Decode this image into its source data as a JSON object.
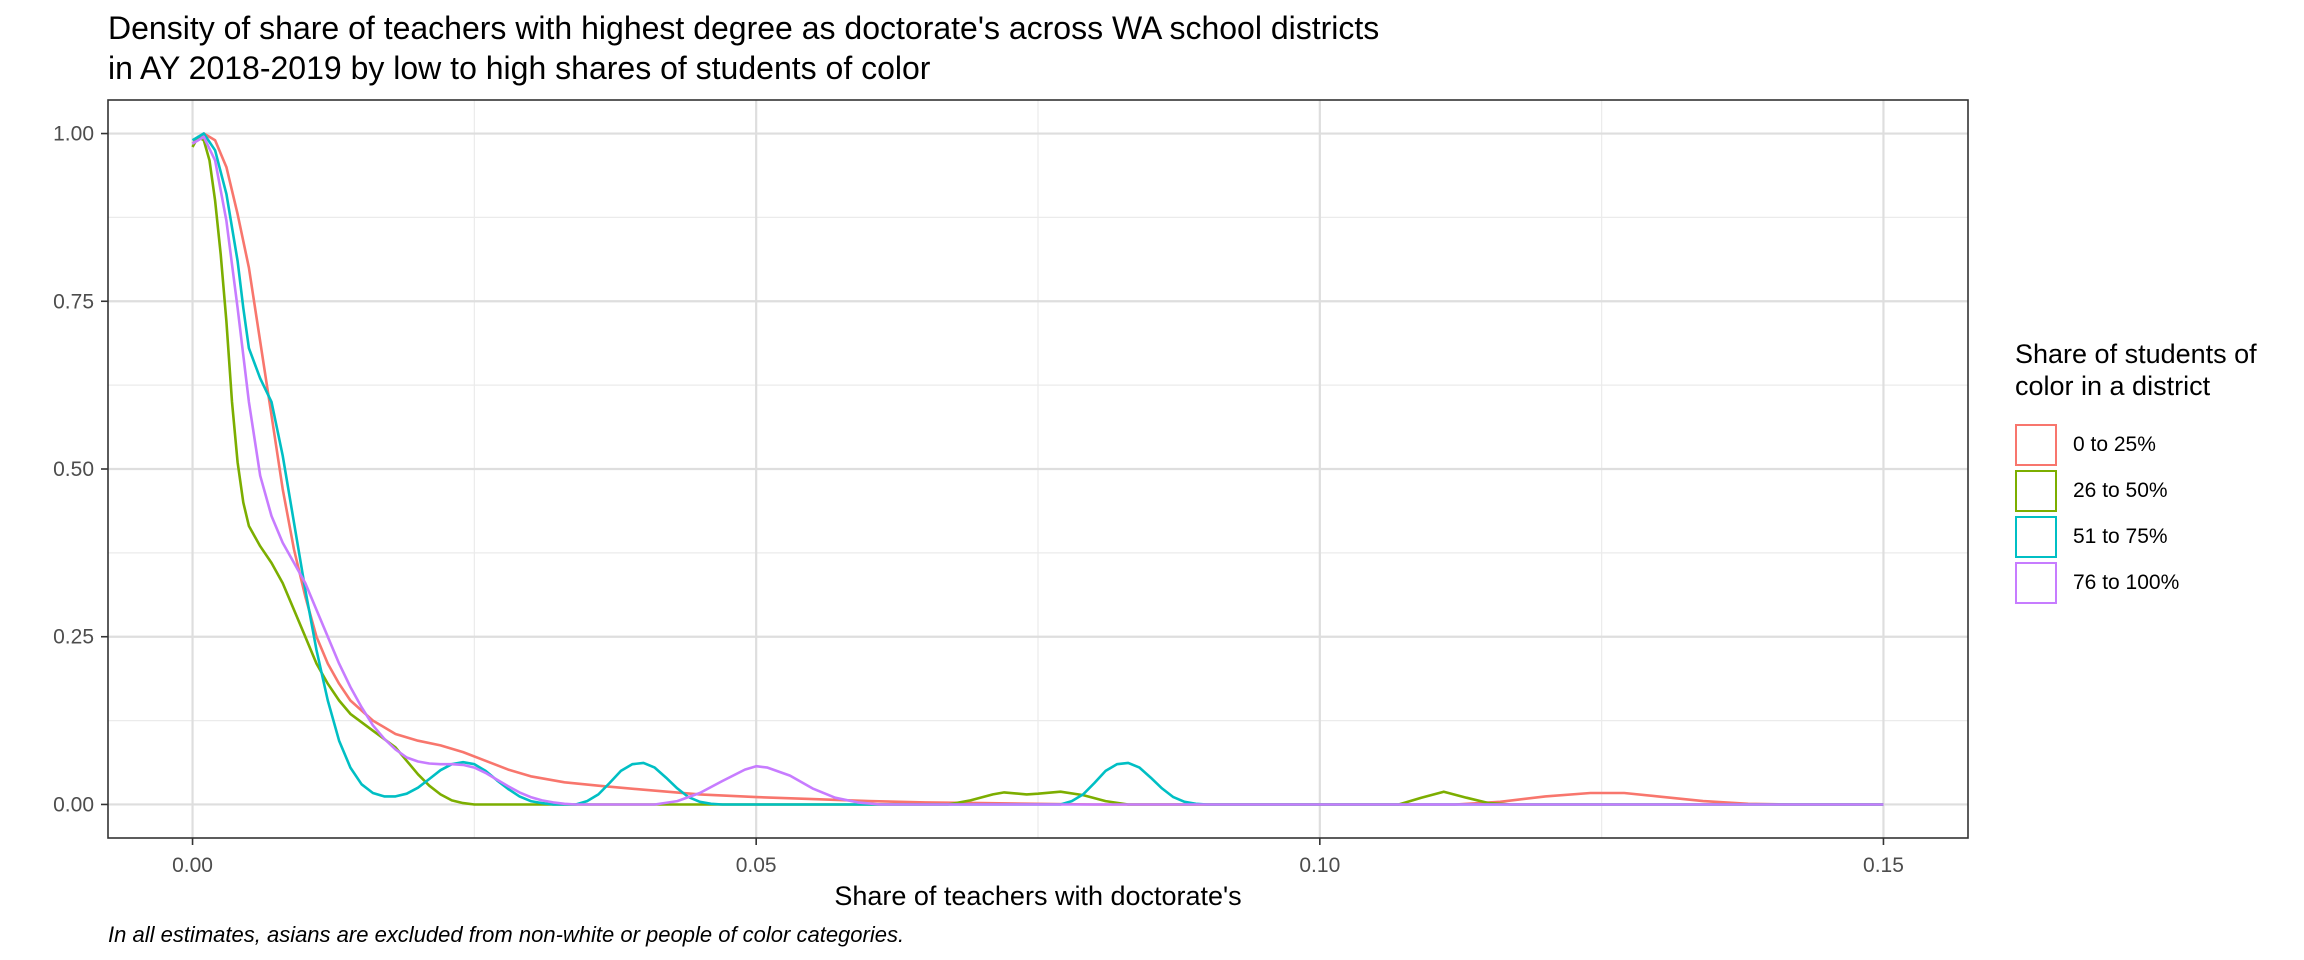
{
  "title_lines": [
    "Density of share of teachers with highest degree as doctorate's across WA school districts",
    "in AY 2018-2019 by low to high shares of students of color"
  ],
  "caption": "In all estimates, asians are excluded from non-white or people of color categories.",
  "legend": {
    "title": "Share of students of color in a district",
    "items": [
      {
        "label": "0 to 25%",
        "color": "#F8766D"
      },
      {
        "label": "26 to 50%",
        "color": "#7CAE00"
      },
      {
        "label": "51 to 75%",
        "color": "#00BFC4"
      },
      {
        "label": "76 to 100%",
        "color": "#C77CFF"
      }
    ]
  },
  "chart_data": {
    "type": "line",
    "title": "Density of share of teachers with highest degree as doctorate's across WA school districts in AY 2018-2019 by low to high shares of students of color",
    "xlabel": "Share of teachers with doctorate's",
    "ylabel": "",
    "xlim": [
      -0.0075,
      0.1575
    ],
    "ylim": [
      -0.05,
      1.05
    ],
    "x_ticks": [
      0.0,
      0.05,
      0.1,
      0.15
    ],
    "x_tick_labels": [
      "0.00",
      "0.05",
      "0.10",
      "0.15"
    ],
    "y_ticks": [
      0.0,
      0.25,
      0.5,
      0.75,
      1.0
    ],
    "y_tick_labels": [
      "0.00",
      "0.25",
      "0.50",
      "0.75",
      "1.00"
    ],
    "grid": true,
    "legend_position": "right",
    "series": [
      {
        "name": "0 to 25%",
        "color": "#F8766D",
        "points": [
          [
            0.0,
            0.985
          ],
          [
            0.001,
            1.0
          ],
          [
            0.002,
            0.99
          ],
          [
            0.003,
            0.95
          ],
          [
            0.004,
            0.88
          ],
          [
            0.005,
            0.8
          ],
          [
            0.006,
            0.69
          ],
          [
            0.007,
            0.58
          ],
          [
            0.008,
            0.47
          ],
          [
            0.009,
            0.38
          ],
          [
            0.01,
            0.31
          ],
          [
            0.011,
            0.25
          ],
          [
            0.012,
            0.21
          ],
          [
            0.013,
            0.18
          ],
          [
            0.014,
            0.155
          ],
          [
            0.016,
            0.125
          ],
          [
            0.018,
            0.105
          ],
          [
            0.02,
            0.095
          ],
          [
            0.022,
            0.088
          ],
          [
            0.024,
            0.078
          ],
          [
            0.026,
            0.065
          ],
          [
            0.028,
            0.052
          ],
          [
            0.03,
            0.042
          ],
          [
            0.033,
            0.033
          ],
          [
            0.036,
            0.028
          ],
          [
            0.04,
            0.022
          ],
          [
            0.045,
            0.015
          ],
          [
            0.05,
            0.011
          ],
          [
            0.055,
            0.008
          ],
          [
            0.06,
            0.005
          ],
          [
            0.065,
            0.003
          ],
          [
            0.07,
            0.002
          ],
          [
            0.08,
            0.0
          ],
          [
            0.1,
            0.0
          ],
          [
            0.112,
            0.0
          ],
          [
            0.116,
            0.004
          ],
          [
            0.12,
            0.012
          ],
          [
            0.124,
            0.017
          ],
          [
            0.127,
            0.017
          ],
          [
            0.13,
            0.012
          ],
          [
            0.134,
            0.005
          ],
          [
            0.138,
            0.001
          ],
          [
            0.142,
            0.0
          ],
          [
            0.15,
            0.0
          ]
        ]
      },
      {
        "name": "26 to 50%",
        "color": "#7CAE00",
        "points": [
          [
            0.0,
            0.98
          ],
          [
            0.0005,
            0.995
          ],
          [
            0.001,
            0.99
          ],
          [
            0.0015,
            0.96
          ],
          [
            0.002,
            0.9
          ],
          [
            0.0025,
            0.82
          ],
          [
            0.003,
            0.72
          ],
          [
            0.0035,
            0.6
          ],
          [
            0.004,
            0.51
          ],
          [
            0.0045,
            0.45
          ],
          [
            0.005,
            0.415
          ],
          [
            0.006,
            0.385
          ],
          [
            0.007,
            0.36
          ],
          [
            0.008,
            0.33
          ],
          [
            0.009,
            0.29
          ],
          [
            0.01,
            0.25
          ],
          [
            0.011,
            0.21
          ],
          [
            0.012,
            0.18
          ],
          [
            0.013,
            0.155
          ],
          [
            0.014,
            0.135
          ],
          [
            0.016,
            0.11
          ],
          [
            0.018,
            0.085
          ],
          [
            0.019,
            0.065
          ],
          [
            0.02,
            0.045
          ],
          [
            0.021,
            0.028
          ],
          [
            0.022,
            0.015
          ],
          [
            0.023,
            0.006
          ],
          [
            0.024,
            0.002
          ],
          [
            0.025,
            0.0
          ],
          [
            0.067,
            0.0
          ],
          [
            0.069,
            0.006
          ],
          [
            0.071,
            0.015
          ],
          [
            0.072,
            0.018
          ],
          [
            0.074,
            0.015
          ],
          [
            0.075,
            0.016
          ],
          [
            0.077,
            0.019
          ],
          [
            0.079,
            0.014
          ],
          [
            0.081,
            0.005
          ],
          [
            0.083,
            0.0
          ],
          [
            0.107,
            0.0
          ],
          [
            0.109,
            0.01
          ],
          [
            0.111,
            0.019
          ],
          [
            0.113,
            0.01
          ],
          [
            0.115,
            0.002
          ],
          [
            0.117,
            0.0
          ],
          [
            0.15,
            0.0
          ]
        ]
      },
      {
        "name": "51 to 75%",
        "color": "#00BFC4",
        "points": [
          [
            0.0,
            0.99
          ],
          [
            0.001,
            1.0
          ],
          [
            0.002,
            0.975
          ],
          [
            0.003,
            0.91
          ],
          [
            0.004,
            0.81
          ],
          [
            0.0045,
            0.74
          ],
          [
            0.005,
            0.68
          ],
          [
            0.006,
            0.635
          ],
          [
            0.007,
            0.6
          ],
          [
            0.008,
            0.52
          ],
          [
            0.009,
            0.42
          ],
          [
            0.01,
            0.32
          ],
          [
            0.011,
            0.23
          ],
          [
            0.012,
            0.155
          ],
          [
            0.013,
            0.095
          ],
          [
            0.014,
            0.055
          ],
          [
            0.015,
            0.03
          ],
          [
            0.016,
            0.017
          ],
          [
            0.017,
            0.012
          ],
          [
            0.018,
            0.012
          ],
          [
            0.019,
            0.016
          ],
          [
            0.02,
            0.025
          ],
          [
            0.021,
            0.038
          ],
          [
            0.022,
            0.051
          ],
          [
            0.023,
            0.06
          ],
          [
            0.024,
            0.063
          ],
          [
            0.025,
            0.06
          ],
          [
            0.026,
            0.05
          ],
          [
            0.027,
            0.036
          ],
          [
            0.028,
            0.023
          ],
          [
            0.029,
            0.012
          ],
          [
            0.03,
            0.005
          ],
          [
            0.031,
            0.002
          ],
          [
            0.032,
            0.0
          ],
          [
            0.034,
            0.0
          ],
          [
            0.035,
            0.005
          ],
          [
            0.036,
            0.015
          ],
          [
            0.037,
            0.032
          ],
          [
            0.038,
            0.05
          ],
          [
            0.039,
            0.06
          ],
          [
            0.04,
            0.062
          ],
          [
            0.041,
            0.055
          ],
          [
            0.042,
            0.04
          ],
          [
            0.043,
            0.024
          ],
          [
            0.044,
            0.011
          ],
          [
            0.045,
            0.004
          ],
          [
            0.046,
            0.001
          ],
          [
            0.047,
            0.0
          ],
          [
            0.077,
            0.0
          ],
          [
            0.078,
            0.005
          ],
          [
            0.079,
            0.015
          ],
          [
            0.08,
            0.032
          ],
          [
            0.081,
            0.05
          ],
          [
            0.082,
            0.06
          ],
          [
            0.083,
            0.062
          ],
          [
            0.084,
            0.055
          ],
          [
            0.085,
            0.04
          ],
          [
            0.086,
            0.024
          ],
          [
            0.087,
            0.011
          ],
          [
            0.088,
            0.004
          ],
          [
            0.089,
            0.001
          ],
          [
            0.09,
            0.0
          ],
          [
            0.15,
            0.0
          ]
        ]
      },
      {
        "name": "76 to 100%",
        "color": "#C77CFF",
        "points": [
          [
            0.0,
            0.985
          ],
          [
            0.001,
            0.995
          ],
          [
            0.002,
            0.96
          ],
          [
            0.003,
            0.87
          ],
          [
            0.004,
            0.74
          ],
          [
            0.005,
            0.6
          ],
          [
            0.006,
            0.49
          ],
          [
            0.007,
            0.43
          ],
          [
            0.008,
            0.39
          ],
          [
            0.009,
            0.36
          ],
          [
            0.01,
            0.33
          ],
          [
            0.011,
            0.29
          ],
          [
            0.012,
            0.25
          ],
          [
            0.013,
            0.21
          ],
          [
            0.014,
            0.175
          ],
          [
            0.015,
            0.145
          ],
          [
            0.016,
            0.118
          ],
          [
            0.017,
            0.098
          ],
          [
            0.018,
            0.082
          ],
          [
            0.019,
            0.07
          ],
          [
            0.02,
            0.064
          ],
          [
            0.021,
            0.061
          ],
          [
            0.022,
            0.06
          ],
          [
            0.023,
            0.06
          ],
          [
            0.024,
            0.059
          ],
          [
            0.025,
            0.055
          ],
          [
            0.026,
            0.047
          ],
          [
            0.027,
            0.037
          ],
          [
            0.028,
            0.027
          ],
          [
            0.029,
            0.018
          ],
          [
            0.03,
            0.011
          ],
          [
            0.031,
            0.006
          ],
          [
            0.032,
            0.003
          ],
          [
            0.033,
            0.001
          ],
          [
            0.034,
            0.0
          ],
          [
            0.041,
            0.0
          ],
          [
            0.043,
            0.005
          ],
          [
            0.045,
            0.017
          ],
          [
            0.047,
            0.035
          ],
          [
            0.049,
            0.052
          ],
          [
            0.05,
            0.057
          ],
          [
            0.051,
            0.055
          ],
          [
            0.053,
            0.043
          ],
          [
            0.055,
            0.024
          ],
          [
            0.057,
            0.01
          ],
          [
            0.059,
            0.003
          ],
          [
            0.061,
            0.0
          ],
          [
            0.15,
            0.0
          ]
        ]
      }
    ]
  }
}
